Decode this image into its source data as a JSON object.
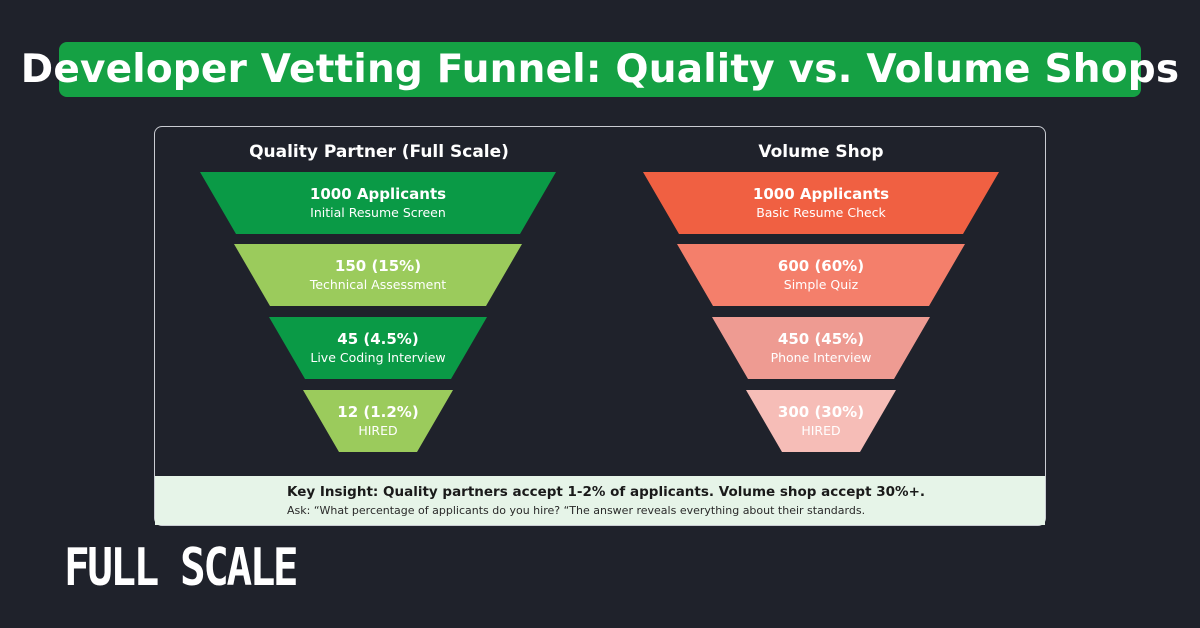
{
  "header": {
    "title": "Developer Vetting Funnel: Quality vs. Volume Shops"
  },
  "funnels": {
    "quality": {
      "title": "Quality Partner (Full Scale)",
      "stages": [
        {
          "count": "1000 Applicants",
          "label": "Initial Resume Screen",
          "color": "#0a9a46"
        },
        {
          "count": "150 (15%)",
          "label": "Technical Assessment",
          "color": "#9bcb5c"
        },
        {
          "count": "45 (4.5%)",
          "label": "Live Coding Interview",
          "color": "#0a9a46"
        },
        {
          "count": "12 (1.2%)",
          "label": "HIRED",
          "color": "#9bcb5c"
        }
      ]
    },
    "volume": {
      "title": "Volume Shop",
      "stages": [
        {
          "count": "1000 Applicants",
          "label": "Basic Resume Check",
          "color": "#f06042"
        },
        {
          "count": "600 (60%)",
          "label": "Simple Quiz",
          "color": "#f47f6b"
        },
        {
          "count": "450 (45%)",
          "label": "Phone Interview",
          "color": "#ee9b92"
        },
        {
          "count": "300 (30%)",
          "label": "HIRED",
          "color": "#f6bdb7"
        }
      ]
    }
  },
  "insight": {
    "main": "Key Insight: Quality partners accept 1-2% of applicants. Volume shop accept 30%+.",
    "sub": "Ask: “What percentage of applicants do you hire? “The answer reveals everything about their standards."
  },
  "brand": {
    "logo_text": "FULL SCALE"
  }
}
